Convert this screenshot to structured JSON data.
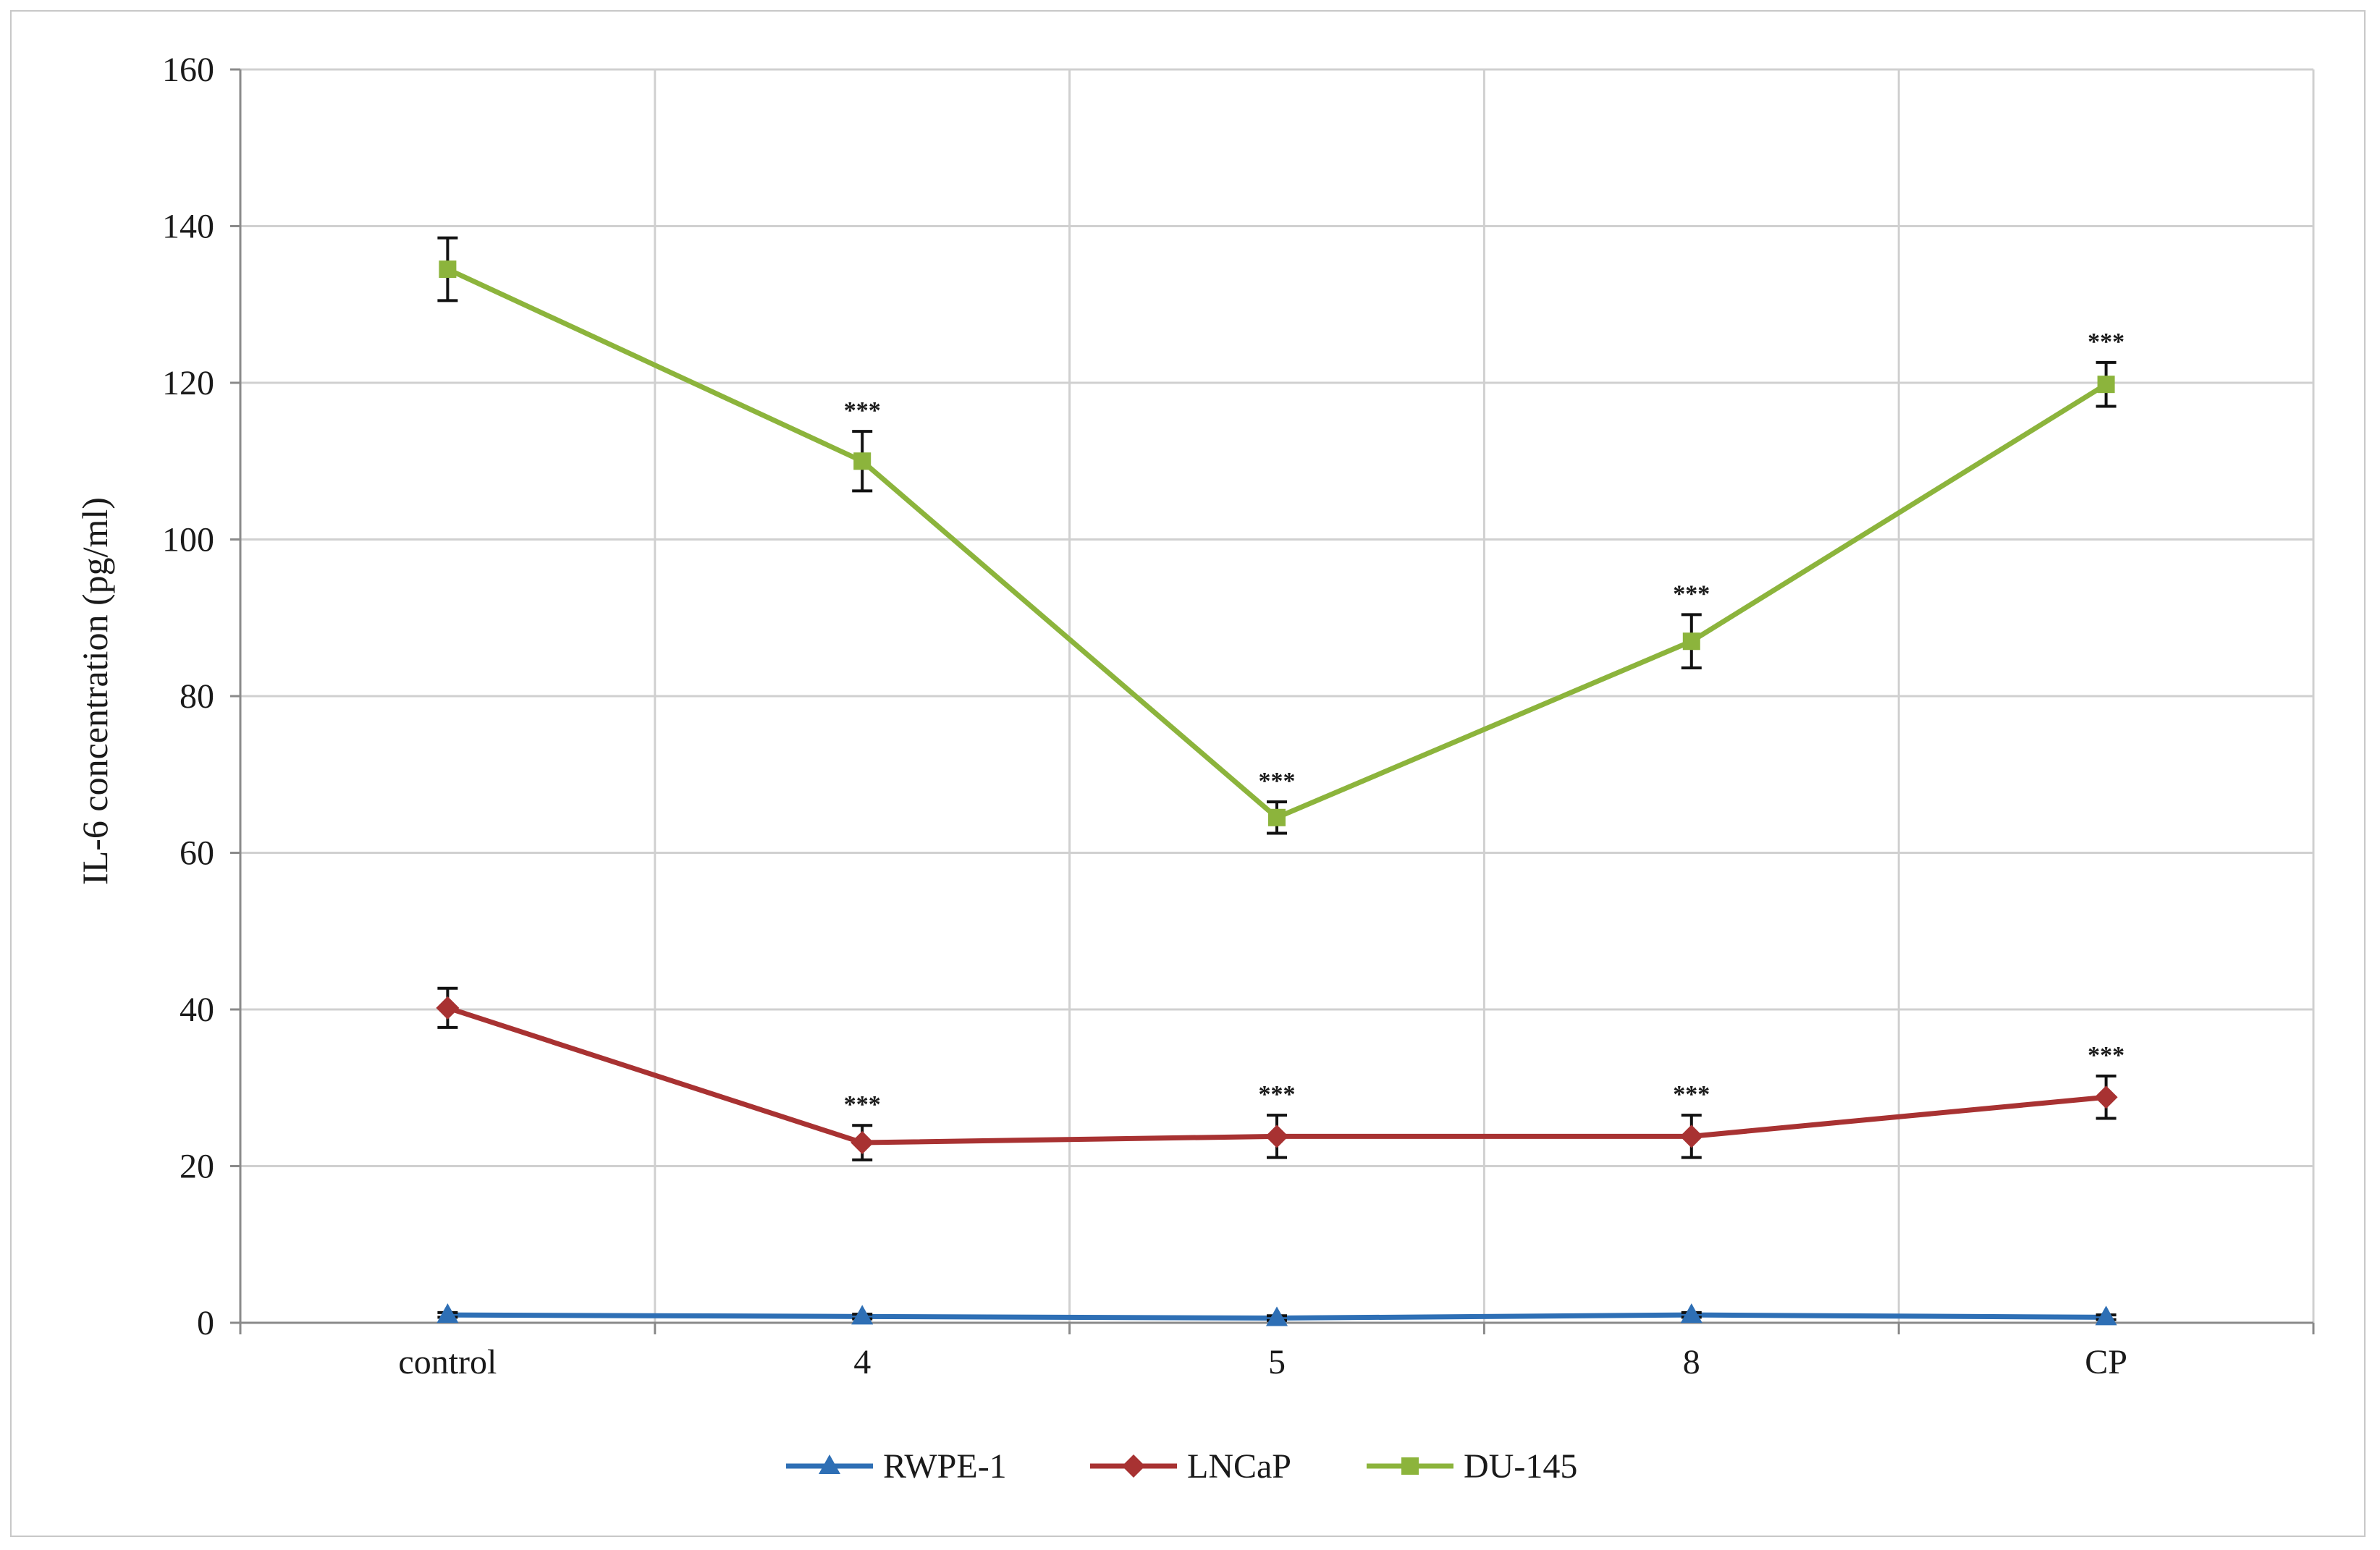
{
  "chart_data": {
    "type": "line",
    "title": "",
    "xlabel": "",
    "ylabel": "IL-6 concentration (pg/ml)",
    "categories": [
      "control",
      "4",
      "5",
      "8",
      "CP"
    ],
    "ylim": [
      0,
      160
    ],
    "yticks": [
      0,
      20,
      40,
      60,
      80,
      100,
      120,
      140,
      160
    ],
    "grid": true,
    "legend_position": "bottom",
    "significance_label": "***",
    "series": [
      {
        "name": "RWPE-1",
        "color": "#2e6fb5",
        "marker": "triangle",
        "values": [
          1.0,
          0.8,
          0.6,
          1.0,
          0.7
        ],
        "errors": [
          0.3,
          0.3,
          0.3,
          0.3,
          0.3
        ],
        "significance": [
          false,
          false,
          false,
          false,
          false
        ]
      },
      {
        "name": "LNCaP",
        "color": "#a83232",
        "marker": "diamond",
        "values": [
          40.2,
          23.0,
          23.8,
          23.8,
          28.8
        ],
        "errors": [
          2.5,
          2.2,
          2.7,
          2.7,
          2.7
        ],
        "significance": [
          false,
          true,
          true,
          true,
          true
        ]
      },
      {
        "name": "DU-145",
        "color": "#8cb43c",
        "marker": "square",
        "values": [
          134.5,
          110.0,
          64.5,
          87.0,
          119.8
        ],
        "errors": [
          4.0,
          3.8,
          2.0,
          3.4,
          2.8
        ],
        "significance": [
          false,
          true,
          true,
          true,
          true
        ]
      }
    ]
  }
}
